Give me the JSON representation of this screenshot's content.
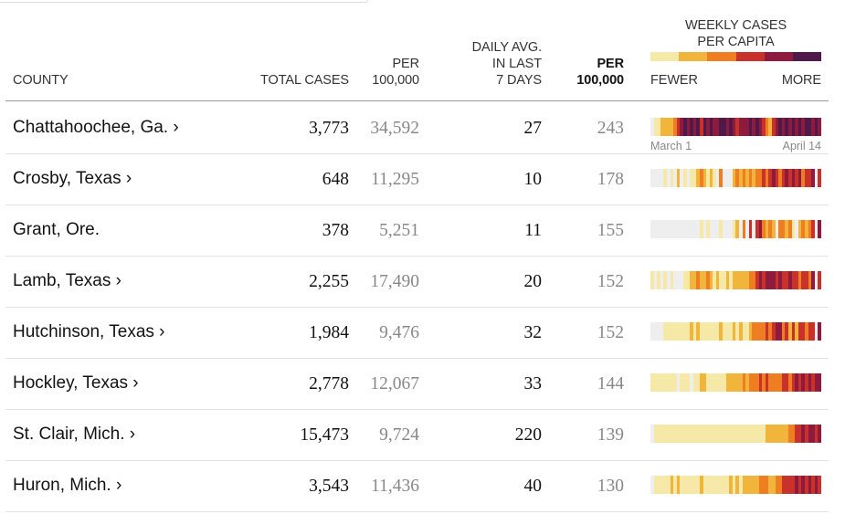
{
  "header": {
    "county": "COUNTY",
    "total_cases": "TOTAL CASES",
    "per_line1": "PER",
    "per_line2": "100,000",
    "daily_line1": "DAILY AVG.",
    "daily_line2": "IN LAST",
    "daily_line3": "7 DAYS",
    "per7_line1": "PER",
    "per7_line2": "100,000",
    "weekly_line1": "WEEKLY CASES",
    "weekly_line2": "PER CAPITA",
    "fewer": "FEWER",
    "more": "MORE"
  },
  "legend_colors": [
    "#f6e9a8",
    "#f2b53c",
    "#ef7d22",
    "#c8322a",
    "#8e1a3e",
    "#4f1a4a"
  ],
  "palette": [
    "#eeeeee",
    "#f6e9a8",
    "#f2b53c",
    "#ef7d22",
    "#c8322a",
    "#8e1a3e",
    "#4f1a4a"
  ],
  "rows": [
    {
      "county": "Chattahoochee, Ga. ›",
      "total": "3,773",
      "per100k": "34,592",
      "daily": "27",
      "per7": "243",
      "strip": "0112222345656564656556656545556565432456565656566565"
    },
    {
      "county": "Crosby, Texas ›",
      "total": "648",
      "per100k": "11,295",
      "daily": "10",
      "per7": "178",
      "strip": "0000101020101123212103000232323233434543454545344504"
    },
    {
      "county": "Grant, Ore.",
      "total": "378",
      "per100k": "5,251",
      "daily": "11",
      "per7": "155",
      "strip": "0000000000000001010001000120304045323203323102323405"
    },
    {
      "county": "Lamb, Texas ›",
      "total": "2,255",
      "per100k": "17,490",
      "daily": "20",
      "per7": "152",
      "strip": "1010101000112232232121121222223345455545445443443504"
    },
    {
      "county": "Hutchinson, Texas ›",
      "total": "1,984",
      "per100k": "9,476",
      "daily": "32",
      "per7": "152",
      "strip": "0000111111112121111112111212112333343455342424434405"
    },
    {
      "county": "Hockley, Texas ›",
      "total": "2,778",
      "per100k": "12,067",
      "daily": "33",
      "per7": "144",
      "strip": "1111111101110112211111122222323334343333443454545455"
    },
    {
      "county": "St. Clair, Mich. ›",
      "total": "15,473",
      "per100k": "9,724",
      "daily": "220",
      "per7": "139",
      "strip": "0111111111111111111111111111111111122222223344545545"
    },
    {
      "county": "Huron, Mich. ›",
      "total": "3,543",
      "per100k": "11,436",
      "daily": "40",
      "per7": "130",
      "strip": "0111112121111112111111112121222223332233444454545454"
    }
  ],
  "first_row_dates": {
    "start": "March 1",
    "end": "April 14"
  }
}
